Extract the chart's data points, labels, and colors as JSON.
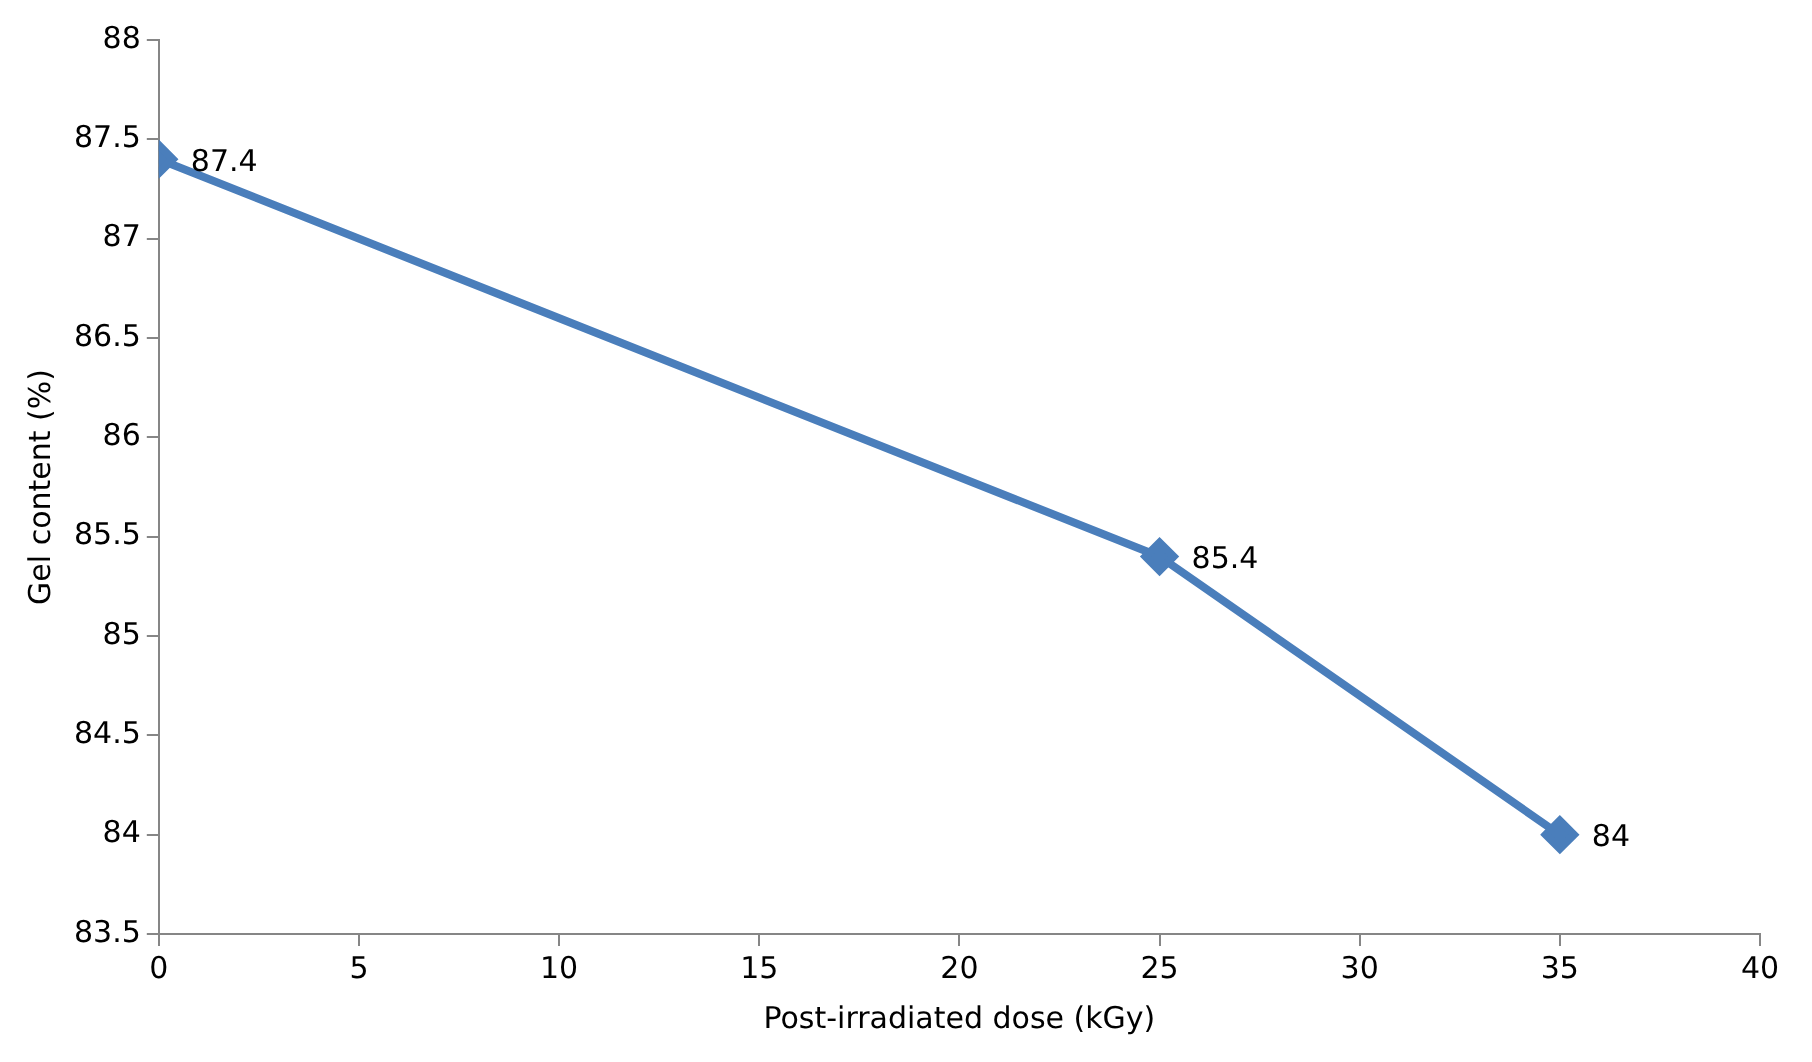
{
  "chart_data": {
    "type": "line",
    "xlabel": "Post-irradiated dose (kGy)",
    "ylabel": "Gel content (%)",
    "x": [
      0,
      25,
      35
    ],
    "series": [
      {
        "color": "#4a7ebb",
        "values": [
          87.4,
          85.4,
          84
        ]
      }
    ],
    "xlim": [
      0,
      40
    ],
    "xticks": [
      0,
      5,
      10,
      15,
      20,
      25,
      30,
      35,
      40
    ],
    "ylim": [
      83.5,
      88
    ],
    "yticks": [
      83.5,
      84,
      84.5,
      85,
      85.5,
      86,
      86.5,
      87,
      87.5,
      88
    ],
    "grid": false,
    "legend": false,
    "marker": "diamond",
    "line_style": "solid",
    "data_labels": true
  }
}
